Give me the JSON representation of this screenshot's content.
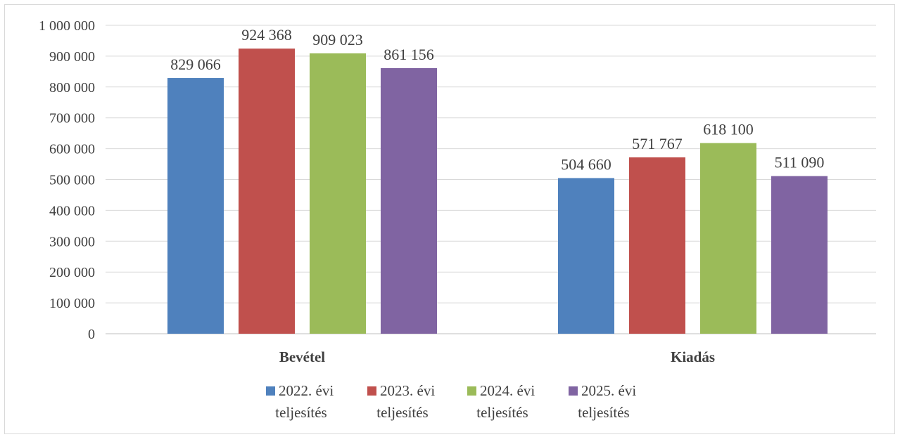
{
  "chart_data": {
    "type": "bar",
    "categories": [
      "Bevétel",
      "Kiadás"
    ],
    "series": [
      {
        "name": "2022. évi teljesítés",
        "values": [
          829066,
          504660
        ],
        "color": "#4f81bd",
        "legend_lines": [
          "2022. évi",
          "teljesítés"
        ]
      },
      {
        "name": "2023. évi teljesítés",
        "values": [
          924368,
          571767
        ],
        "color": "#c0504d",
        "legend_lines": [
          "2023. évi",
          "teljesítés"
        ]
      },
      {
        "name": "2024. évi teljesítés",
        "values": [
          909023,
          618100
        ],
        "color": "#9bbb59",
        "legend_lines": [
          "2024. évi",
          "teljesítés"
        ]
      },
      {
        "name": "2025. évi teljesítés",
        "values": [
          861156,
          511090
        ],
        "color": "#8064a2",
        "legend_lines": [
          "2025. évi",
          "teljesítés"
        ]
      }
    ],
    "data_labels": [
      [
        "829 066",
        "504 660"
      ],
      [
        "924 368",
        "571 767"
      ],
      [
        "909 023",
        "618 100"
      ],
      [
        "861 156",
        "511 090"
      ]
    ],
    "yticks": [
      0,
      100000,
      200000,
      300000,
      400000,
      500000,
      600000,
      700000,
      800000,
      900000,
      1000000
    ],
    "ytick_labels": [
      "0",
      "100 000",
      "200 000",
      "300 000",
      "400 000",
      "500 000",
      "600 000",
      "700 000",
      "800 000",
      "900 000",
      "1 000 000"
    ],
    "ylim": [
      0,
      1000000
    ],
    "grid": true,
    "legend_position": "bottom"
  }
}
